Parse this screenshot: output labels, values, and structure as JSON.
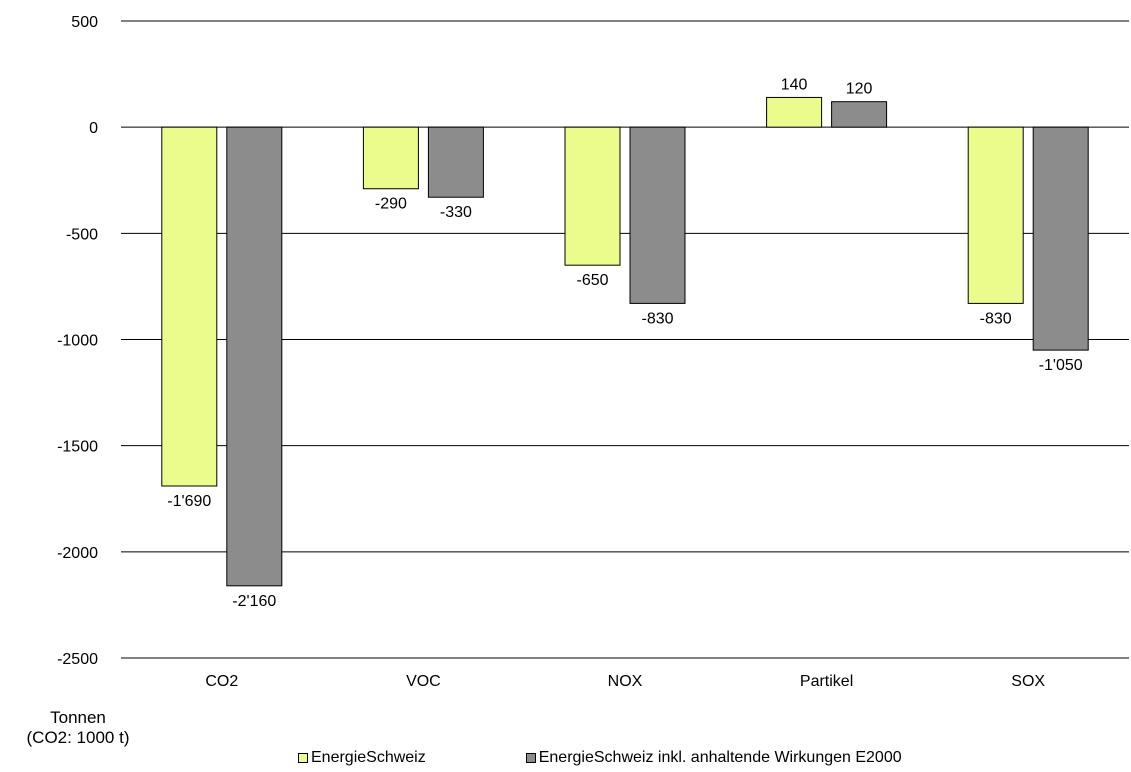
{
  "chart_data": {
    "type": "bar",
    "categories": [
      "CO2",
      "VOC",
      "NOX",
      "Partikel",
      "SOX"
    ],
    "series": [
      {
        "name": "EnergieSchweiz",
        "values": [
          -1690,
          -290,
          -650,
          140,
          -830
        ],
        "labels": [
          "-1'690",
          "-290",
          "-650",
          "140",
          "-830"
        ],
        "color": "#ecfc8c"
      },
      {
        "name": "EnergieSchweiz inkl. anhaltende Wirkungen E2000",
        "values": [
          -2160,
          -330,
          -830,
          120,
          -1050
        ],
        "labels": [
          "-2'160",
          "-330",
          "-830",
          "120",
          "-1'050"
        ],
        "color": "#8c8c8c"
      }
    ],
    "yticks": [
      "500",
      "0",
      "-500",
      "-1000",
      "-1500",
      "-2000",
      "-2500"
    ],
    "ylim": [
      -2500,
      500
    ],
    "grid": true,
    "legend_position": "bottom"
  },
  "unit_label": {
    "line1": "Tonnen",
    "line2": "(CO2: 1000 t)"
  },
  "legend": [
    {
      "label": "EnergieSchweiz",
      "color": "#ecfc8c"
    },
    {
      "label": "EnergieSchweiz inkl. anhaltende Wirkungen E2000",
      "color": "#8c8c8c"
    }
  ]
}
